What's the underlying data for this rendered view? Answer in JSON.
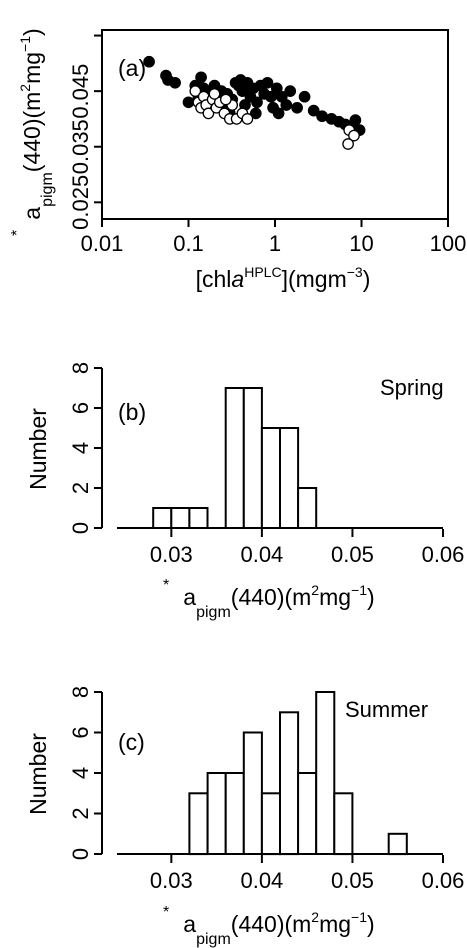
{
  "chart_data": [
    {
      "type": "scatter",
      "panel_label": "(a)",
      "xscale": "log",
      "xlim": [
        0.01,
        100
      ],
      "ylim": [
        0.022,
        0.056
      ],
      "x_ticks": [
        0.01,
        0.1,
        1,
        10,
        100
      ],
      "x_tick_labels": [
        "0.01",
        "0.1",
        "1",
        "10",
        "100"
      ],
      "y_ticks": [
        0.025,
        0.035,
        0.045,
        0.055
      ],
      "y_tick_labels": [
        "0.025",
        "0.035",
        "0.045",
        ""
      ],
      "xlabel": {
        "pre": "[chl",
        "italic": "a",
        "sup": "HPLC",
        "post": "](mgm",
        "post_sup": "−3",
        "end": ")"
      },
      "ylabel": {
        "base": "a",
        "star": "*",
        "sub": "pigm",
        "mid": "(440)(m",
        "sup1": "2",
        "mid2": "mg",
        "sup2": "−1",
        "end": ")"
      },
      "series": [
        {
          "marker": "filled",
          "points": [
            [
              0.035,
              0.0503
            ],
            [
              0.055,
              0.0478
            ],
            [
              0.058,
              0.047
            ],
            [
              0.07,
              0.0465
            ],
            [
              0.1,
              0.043
            ],
            [
              0.12,
              0.046
            ],
            [
              0.14,
              0.0475
            ],
            [
              0.15,
              0.0455
            ],
            [
              0.17,
              0.0445
            ],
            [
              0.19,
              0.043
            ],
            [
              0.21,
              0.044
            ],
            [
              0.24,
              0.045
            ],
            [
              0.28,
              0.0445
            ],
            [
              0.32,
              0.0435
            ],
            [
              0.35,
              0.0465
            ],
            [
              0.38,
              0.046
            ],
            [
              0.42,
              0.045
            ],
            [
              0.45,
              0.0425
            ],
            [
              0.48,
              0.0465
            ],
            [
              0.52,
              0.044
            ],
            [
              0.56,
              0.0455
            ],
            [
              0.62,
              0.043
            ],
            [
              0.68,
              0.046
            ],
            [
              0.75,
              0.0445
            ],
            [
              0.82,
              0.0465
            ],
            [
              0.9,
              0.044
            ],
            [
              0.95,
              0.042
            ],
            [
              1.05,
              0.0455
            ],
            [
              1.2,
              0.044
            ],
            [
              1.35,
              0.0425
            ],
            [
              1.5,
              0.045
            ],
            [
              1.8,
              0.042
            ],
            [
              2.2,
              0.044
            ],
            [
              2.8,
              0.0415
            ],
            [
              3.5,
              0.0405
            ],
            [
              4.5,
              0.04
            ],
            [
              5.5,
              0.0395
            ],
            [
              6.5,
              0.039
            ],
            [
              7.5,
              0.0385
            ],
            [
              8.5,
              0.0398
            ],
            [
              9.5,
              0.038
            ],
            [
              0.3,
              0.041
            ],
            [
              0.6,
              0.041
            ],
            [
              0.25,
              0.042
            ],
            [
              1.1,
              0.041
            ],
            [
              0.13,
              0.044
            ],
            [
              0.2,
              0.046
            ],
            [
              0.4,
              0.047
            ]
          ]
        },
        {
          "marker": "open",
          "points": [
            [
              0.12,
              0.045
            ],
            [
              0.13,
              0.043
            ],
            [
              0.14,
              0.042
            ],
            [
              0.15,
              0.044
            ],
            [
              0.16,
              0.0425
            ],
            [
              0.17,
              0.041
            ],
            [
              0.19,
              0.0435
            ],
            [
              0.21,
              0.042
            ],
            [
              0.23,
              0.043
            ],
            [
              0.26,
              0.041
            ],
            [
              0.3,
              0.04
            ],
            [
              0.32,
              0.0425
            ],
            [
              0.36,
              0.04
            ],
            [
              0.42,
              0.041
            ],
            [
              0.48,
              0.04
            ],
            [
              0.2,
              0.0445
            ],
            [
              7.2,
              0.038
            ],
            [
              8.2,
              0.037
            ],
            [
              7.0,
              0.0355
            ],
            [
              0.27,
              0.0435
            ]
          ]
        }
      ]
    },
    {
      "type": "bar",
      "panel_label": "(b)",
      "annotation": "Spring",
      "bin_edges": [
        0.028,
        0.03,
        0.032,
        0.034,
        0.036,
        0.038,
        0.04,
        0.042,
        0.044,
        0.046
      ],
      "values": [
        1,
        1,
        1,
        0,
        7,
        7,
        5,
        5,
        2
      ],
      "xlim": [
        0.024,
        0.06
      ],
      "ylim": [
        0,
        8
      ],
      "x_ticks": [
        0.03,
        0.04,
        0.05,
        0.06
      ],
      "x_tick_labels": [
        "0.03",
        "0.04",
        "0.05",
        "0.06"
      ],
      "y_ticks": [
        0,
        2,
        4,
        6,
        8
      ],
      "y_tick_labels": [
        "0",
        "2",
        "4",
        "6",
        "8"
      ],
      "ylabel": "Number",
      "xlabel": {
        "base": "a",
        "star": "*",
        "sub": "pigm",
        "mid": "(440)(m",
        "sup1": "2",
        "mid2": "mg",
        "sup2": "−1",
        "end": ")"
      }
    },
    {
      "type": "bar",
      "panel_label": "(c)",
      "annotation": "Summer",
      "bin_edges": [
        0.032,
        0.034,
        0.036,
        0.038,
        0.04,
        0.042,
        0.044,
        0.046,
        0.048,
        0.05,
        0.052,
        0.054,
        0.056
      ],
      "values": [
        3,
        4,
        4,
        6,
        3,
        7,
        4,
        8,
        3,
        0,
        0,
        1
      ],
      "xlim": [
        0.024,
        0.06
      ],
      "ylim": [
        0,
        8
      ],
      "x_ticks": [
        0.03,
        0.04,
        0.05,
        0.06
      ],
      "x_tick_labels": [
        "0.03",
        "0.04",
        "0.05",
        "0.06"
      ],
      "y_ticks": [
        0,
        2,
        4,
        6,
        8
      ],
      "y_tick_labels": [
        "0",
        "2",
        "4",
        "6",
        "8"
      ],
      "ylabel": "Number",
      "xlabel": {
        "base": "a",
        "star": "*",
        "sub": "pigm",
        "mid": "(440)(m",
        "sup1": "2",
        "mid2": "mg",
        "sup2": "−1",
        "end": ")"
      }
    }
  ]
}
